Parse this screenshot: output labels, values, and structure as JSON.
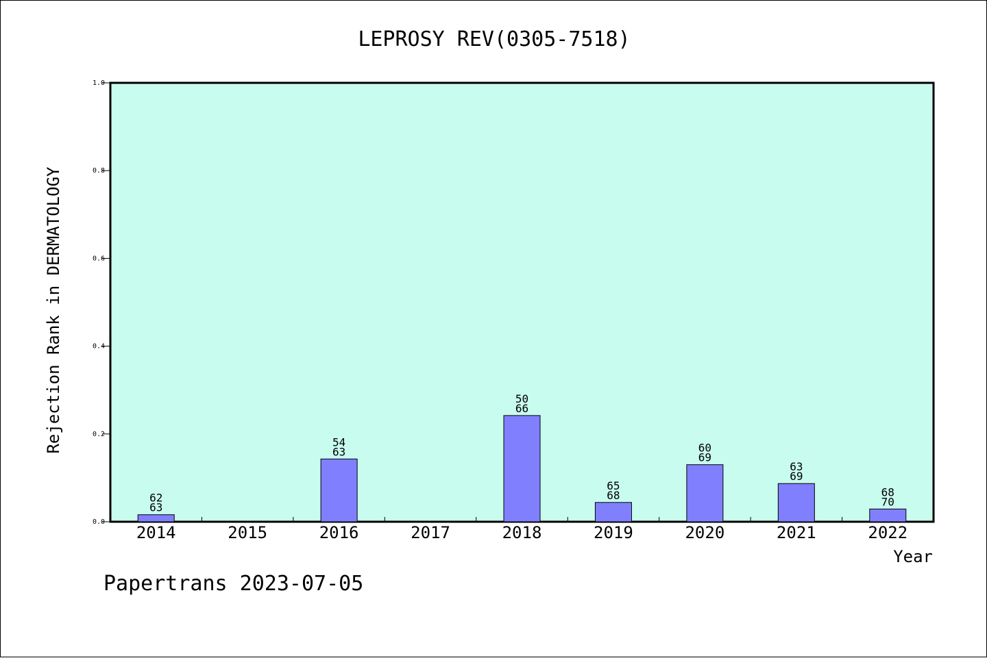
{
  "chart_data": {
    "type": "bar",
    "title": "LEPROSY REV(0305-7518)",
    "xlabel": "Year",
    "ylabel": "Rejection Rank in DERMATOLOGY",
    "categories": [
      "2014",
      "2015",
      "2016",
      "2017",
      "2018",
      "2019",
      "2020",
      "2021",
      "2022"
    ],
    "values": [
      0.016,
      null,
      0.143,
      null,
      0.242,
      0.044,
      0.13,
      0.087,
      0.029
    ],
    "label_top": [
      "62",
      "",
      "54",
      "",
      "50",
      "65",
      "60",
      "63",
      "68"
    ],
    "label_bottom": [
      "63",
      "",
      "63",
      "",
      "66",
      "68",
      "69",
      "69",
      "70"
    ],
    "ylim": [
      0,
      1.0
    ],
    "yticks": [
      "0.0",
      "0.2",
      "0.4",
      "0.6",
      "0.8",
      "1.0"
    ],
    "grid": false,
    "colors": {
      "plot_background": "#c8fcee",
      "bar_fill": "#8080ff",
      "bar_stroke": "#000000"
    }
  },
  "footer": "Papertrans 2023-07-05"
}
